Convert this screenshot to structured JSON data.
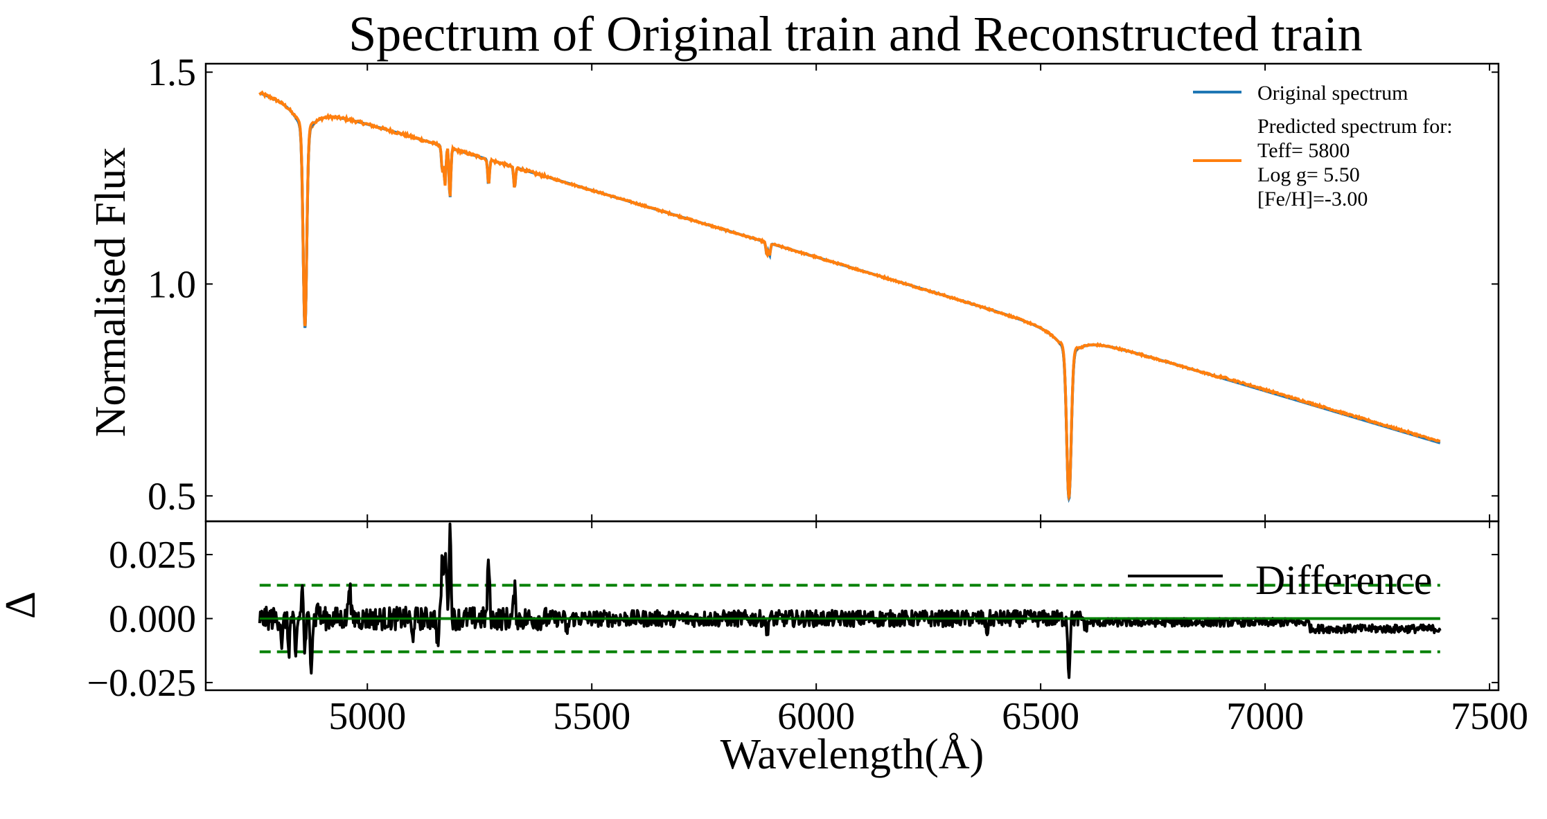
{
  "chart_data": [
    {
      "type": "line",
      "title": "Spectrum of Original train and Reconstructed train",
      "xlabel": "",
      "ylabel": "Normalised Flux",
      "xlim": [
        4640,
        7520
      ],
      "ylim": [
        0.44,
        1.52
      ],
      "yticks": [
        0.5,
        1.0,
        1.5
      ],
      "ytick_labels": [
        "0.5",
        "1.0",
        "1.5"
      ],
      "grid": false,
      "legend_position": "top-right",
      "continuum": {
        "x": [
          4760,
          7390
        ],
        "y": [
          1.455,
          0.625
        ]
      },
      "absorption_lines": [
        {
          "x": 4861,
          "depth": 0.47,
          "width": 4
        },
        {
          "x": 6563,
          "depth": 0.35,
          "width": 5
        },
        {
          "x": 5167,
          "depth": 0.06,
          "width": 2
        },
        {
          "x": 5173,
          "depth": 0.09,
          "width": 2
        },
        {
          "x": 5184,
          "depth": 0.12,
          "width": 2
        },
        {
          "x": 5270,
          "depth": 0.06,
          "width": 2
        },
        {
          "x": 5328,
          "depth": 0.05,
          "width": 2
        },
        {
          "x": 5890,
          "depth": 0.03,
          "width": 2
        },
        {
          "x": 5896,
          "depth": 0.03,
          "width": 2
        }
      ],
      "series": [
        {
          "name": "Original spectrum",
          "color": "#1f77b4",
          "line_width": 4
        },
        {
          "name": "Predicted spectrum for:\n Teff= 5800\nLog g= 5.50\n[Fe/H]=-3.00",
          "color": "#ff7f0e",
          "line_width": 4
        }
      ],
      "legend": {
        "entries": [
          {
            "label_lines": [
              "Original spectrum"
            ],
            "color": "#1f77b4"
          },
          {
            "label_lines": [
              "Predicted spectrum for:",
              " Teff= 5800",
              "Log g= 5.50",
              "[Fe/H]=-3.00"
            ],
            "color": "#ff7f0e"
          }
        ]
      }
    },
    {
      "type": "line",
      "title": "",
      "xlabel": "Wavelength(Å)",
      "ylabel": "Δ",
      "xlim": [
        4640,
        7520
      ],
      "ylim": [
        -0.028,
        0.038
      ],
      "xticks": [
        5000,
        5500,
        6000,
        6500,
        7000,
        7500
      ],
      "xtick_labels": [
        "5000",
        "5500",
        "6000",
        "6500",
        "7000",
        "7500"
      ],
      "yticks": [
        0.025,
        0.0,
        -0.025
      ],
      "ytick_labels": [
        "0.025",
        "0.000",
        "−0.025"
      ],
      "grid": false,
      "legend_position": "top-right",
      "difference_spikes": [
        {
          "x": 4810,
          "v": -0.01
        },
        {
          "x": 4825,
          "v": -0.012
        },
        {
          "x": 4840,
          "v": -0.017
        },
        {
          "x": 4855,
          "v": 0.012
        },
        {
          "x": 4861,
          "v": -0.013
        },
        {
          "x": 4875,
          "v": -0.017
        },
        {
          "x": 4890,
          "v": 0.006
        },
        {
          "x": 4960,
          "v": 0.016
        },
        {
          "x": 5100,
          "v": -0.008
        },
        {
          "x": 5157,
          "v": -0.01
        },
        {
          "x": 5167,
          "v": 0.025
        },
        {
          "x": 5174,
          "v": 0.029
        },
        {
          "x": 5184,
          "v": 0.036
        },
        {
          "x": 5270,
          "v": 0.023
        },
        {
          "x": 5328,
          "v": 0.011
        },
        {
          "x": 5445,
          "v": -0.007
        },
        {
          "x": 5890,
          "v": -0.006
        },
        {
          "x": 6380,
          "v": -0.006
        },
        {
          "x": 6563,
          "v": -0.022
        },
        {
          "x": 6600,
          "v": -0.004
        }
      ],
      "series": [
        {
          "name": "Difference",
          "color": "#000000",
          "line_width": 4
        },
        {
          "name": "",
          "color": "#008000",
          "line_width": 4,
          "style": "solid",
          "y": 0.0
        },
        {
          "name": "",
          "color": "#008000",
          "line_width": 4,
          "style": "dashed",
          "y": 0.013
        },
        {
          "name": "",
          "color": "#008000",
          "line_width": 4,
          "style": "dashed",
          "y": -0.013
        }
      ],
      "data_extent": [
        4760,
        7390
      ]
    }
  ]
}
